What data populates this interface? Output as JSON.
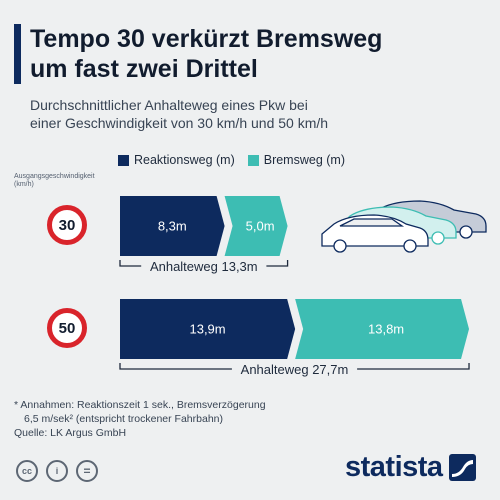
{
  "header": {
    "title": "Tempo 30 verkürzt Bremsweg\num fast zwei Drittel",
    "subtitle": "Durchschnittlicher Anhalteweg eines Pkw bei\neiner Geschwindigkeit von 30 km/h und 50 km/h"
  },
  "legend": {
    "reaction": "Reaktionsweg (m)",
    "braking": "Bremsweg (m)"
  },
  "axis_label": "Ausgangsgeschwindigkeit\n(km/h)",
  "chart_data": {
    "type": "bar",
    "stacked": true,
    "orientation": "horizontal",
    "categories": [
      "30",
      "50"
    ],
    "series": [
      {
        "name": "Reaktionsweg (m)",
        "values": [
          8.3,
          13.9
        ],
        "color": "#0d2a5e",
        "labels": [
          "8,3m",
          "13,9m"
        ]
      },
      {
        "name": "Bremsweg (m)",
        "values": [
          5.0,
          13.8
        ],
        "color": "#3dbdb3",
        "labels": [
          "5,0m",
          "13,8m"
        ]
      }
    ],
    "totals": [
      13.3,
      27.7
    ],
    "total_labels": [
      "Anhalteweg 13,3m",
      "Anhalteweg 27,7m"
    ]
  },
  "footnote": {
    "line1": "* Annahmen: Reaktionszeit 1 sek., Bremsverzögerung",
    "line2": "6,5 m/sek² (entspricht trockener Fahrbahn)",
    "source": "Quelle: LK Argus GmbH"
  },
  "license_icons": [
    {
      "name": "cc-icon",
      "glyph": "cc"
    },
    {
      "name": "attribution-icon",
      "glyph": "i"
    },
    {
      "name": "no-derivatives-icon",
      "glyph": "="
    }
  ],
  "brand": {
    "name": "statista"
  },
  "colors": {
    "reaction": "#0d2a5e",
    "braking": "#3dbdb3",
    "sign_border": "#d9242b",
    "accent": "#0d2a5e"
  }
}
